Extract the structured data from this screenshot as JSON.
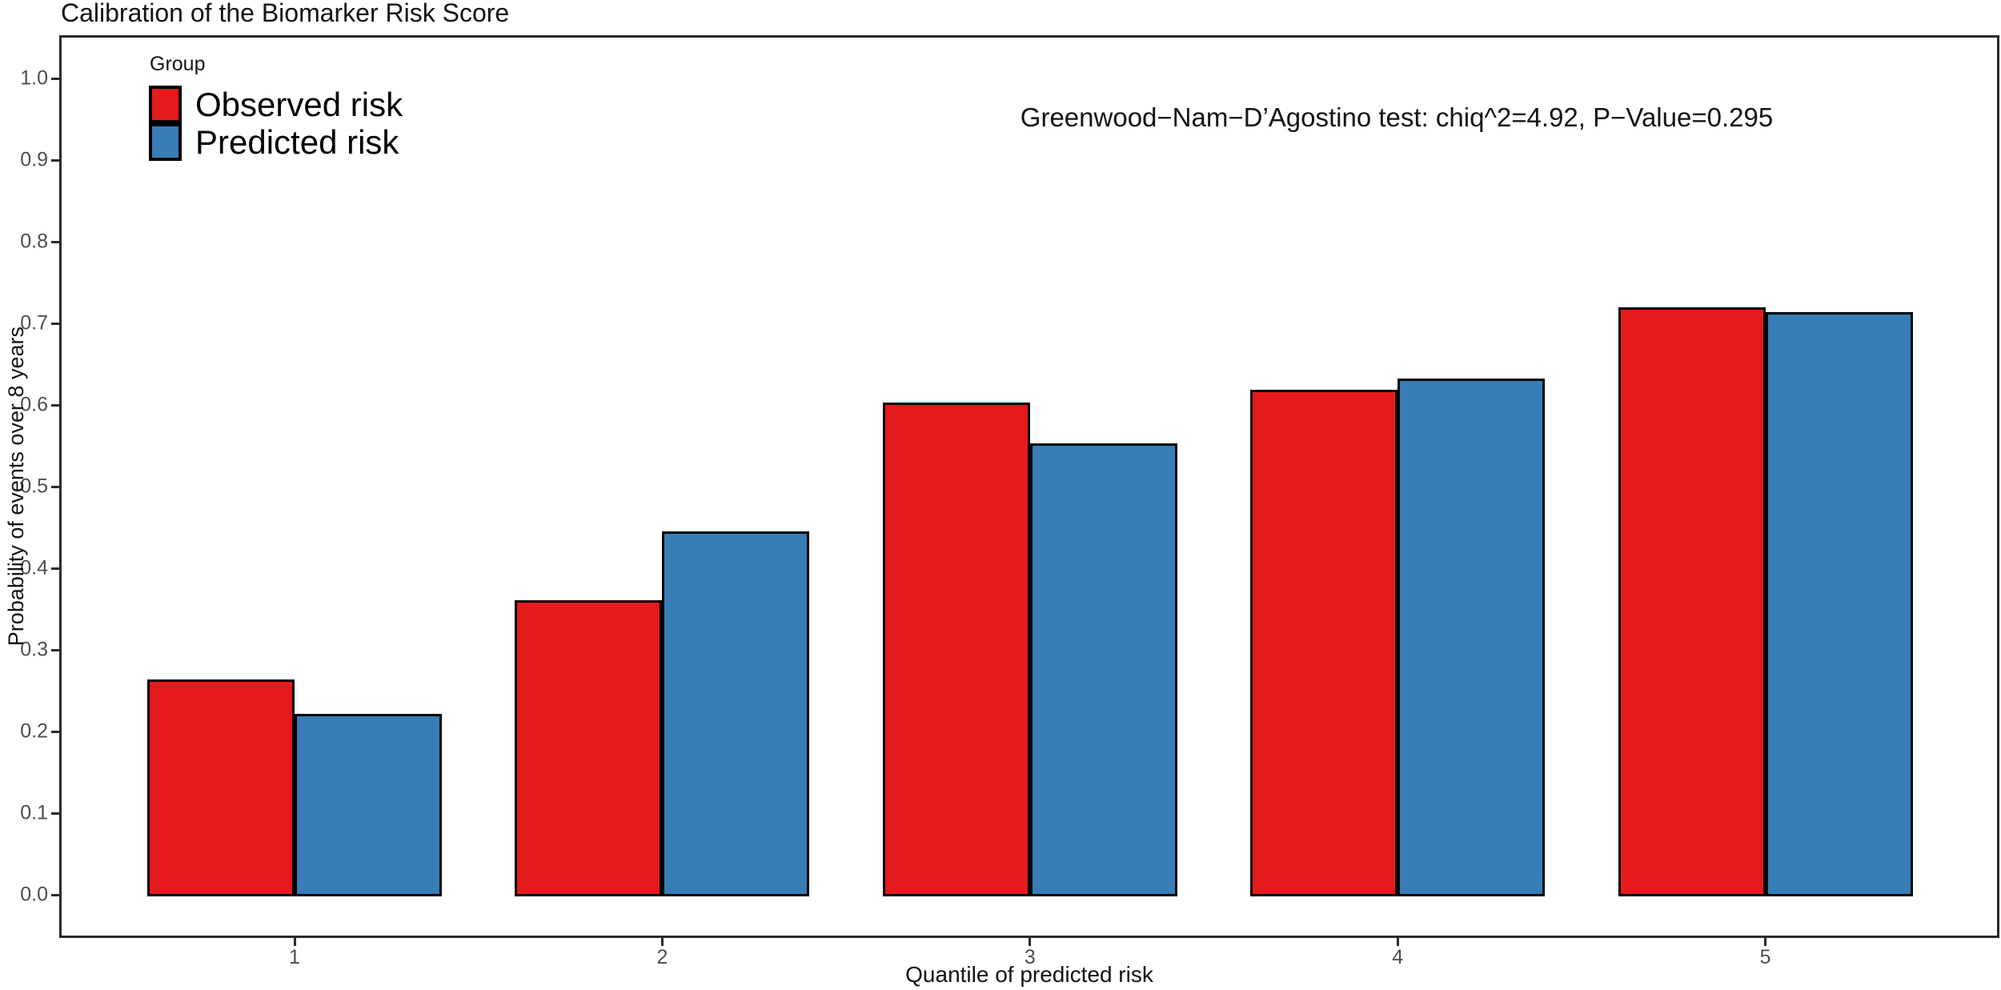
{
  "title": "Calibration of the Biomarker Risk Score",
  "annotation": "Greenwood−Nam−D’Agostino test: chiq^2=4.92, P−Value=0.295",
  "legend": {
    "title": "Group",
    "items": [
      {
        "label": "Observed risk",
        "color": "#E41A1C"
      },
      {
        "label": "Predicted risk",
        "color": "#377EB8"
      }
    ]
  },
  "axes": {
    "x_label": "Quantile of predicted risk",
    "y_label": "Probability of events over 8 years"
  },
  "chart_data": {
    "type": "bar",
    "title": "Calibration of the Biomarker Risk Score",
    "categories": [
      "1",
      "2",
      "3",
      "4",
      "5"
    ],
    "series": [
      {
        "name": "Observed risk",
        "color": "#E41A1C",
        "values": [
          0.264,
          0.361,
          0.603,
          0.619,
          0.72
        ]
      },
      {
        "name": "Predicted risk",
        "color": "#377EB8",
        "values": [
          0.222,
          0.445,
          0.553,
          0.632,
          0.714
        ]
      }
    ],
    "xlabel": "Quantile of predicted risk",
    "ylabel": "Probability of events over 8 years",
    "ylim": [
      0.0,
      1.0
    ],
    "ytick_step": 0.1,
    "grid": false,
    "bar_edge_color": "#000000",
    "legend_title": "Group",
    "legend_position": "top-left-inside",
    "annotation": "Greenwood−Nam−D’Agostino test: chiq^2=4.92, P−Value=0.295"
  }
}
